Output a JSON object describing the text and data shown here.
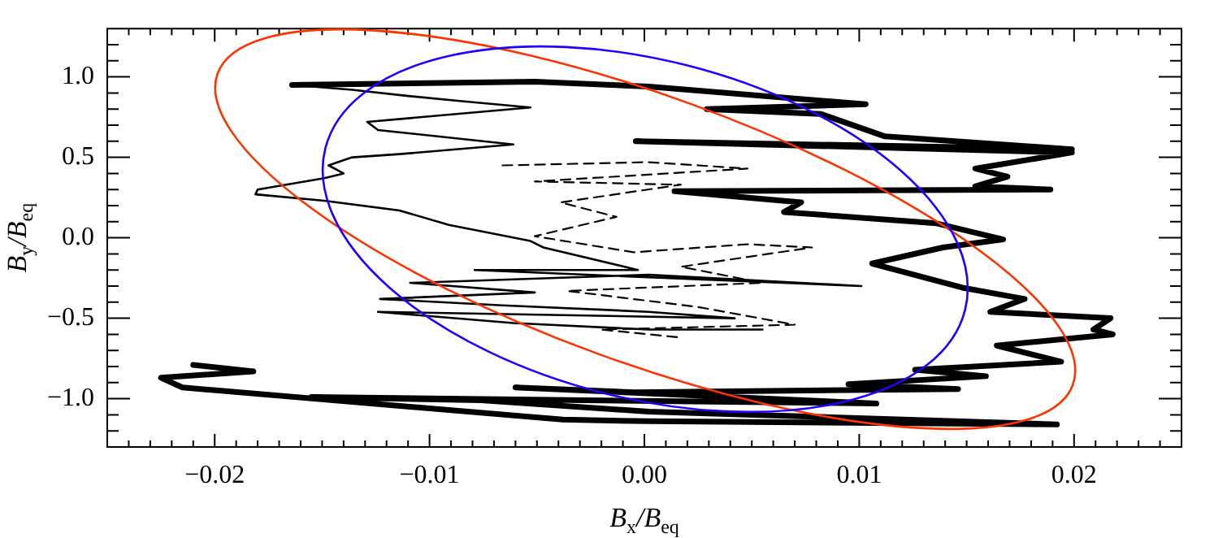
{
  "chart_data": {
    "type": "line",
    "xlabel": "B$_{x}$/B$_{eq}$",
    "ylabel": "B$_{y}$/B$_{eq}$",
    "marker": "none",
    "legend": false,
    "grid": false,
    "xlim": [
      -0.025,
      0.025
    ],
    "ylim": [
      -1.3,
      1.3
    ],
    "xticks": [
      {
        "value": -0.024,
        "label": null
      },
      {
        "value": -0.023,
        "label": null
      },
      {
        "value": -0.022,
        "label": null
      },
      {
        "value": -0.021,
        "label": null
      },
      {
        "value": -0.02,
        "label": "−0.02"
      },
      {
        "value": -0.019,
        "label": null
      },
      {
        "value": -0.018,
        "label": null
      },
      {
        "value": -0.017,
        "label": null
      },
      {
        "value": -0.016,
        "label": null
      },
      {
        "value": -0.015,
        "label": null
      },
      {
        "value": -0.014,
        "label": null
      },
      {
        "value": -0.013,
        "label": null
      },
      {
        "value": -0.012,
        "label": null
      },
      {
        "value": -0.011,
        "label": null
      },
      {
        "value": -0.01,
        "label": "−0.01"
      },
      {
        "value": -0.009,
        "label": null
      },
      {
        "value": -0.008,
        "label": null
      },
      {
        "value": -0.007,
        "label": null
      },
      {
        "value": -0.006,
        "label": null
      },
      {
        "value": -0.005,
        "label": null
      },
      {
        "value": -0.004,
        "label": null
      },
      {
        "value": -0.003,
        "label": null
      },
      {
        "value": -0.002,
        "label": null
      },
      {
        "value": -0.001,
        "label": null
      },
      {
        "value": 0,
        "label": "0.00"
      },
      {
        "value": 0.001,
        "label": null
      },
      {
        "value": 0.002,
        "label": null
      },
      {
        "value": 0.003,
        "label": null
      },
      {
        "value": 0.004,
        "label": null
      },
      {
        "value": 0.005,
        "label": null
      },
      {
        "value": 0.006,
        "label": null
      },
      {
        "value": 0.007,
        "label": null
      },
      {
        "value": 0.008,
        "label": null
      },
      {
        "value": 0.009,
        "label": null
      },
      {
        "value": 0.01,
        "label": "0.01"
      },
      {
        "value": 0.011,
        "label": null
      },
      {
        "value": 0.012,
        "label": null
      },
      {
        "value": 0.013,
        "label": null
      },
      {
        "value": 0.014,
        "label": null
      },
      {
        "value": 0.015,
        "label": null
      },
      {
        "value": 0.016,
        "label": null
      },
      {
        "value": 0.017,
        "label": null
      },
      {
        "value": 0.018,
        "label": null
      },
      {
        "value": 0.019,
        "label": null
      },
      {
        "value": 0.02,
        "label": "0.02"
      },
      {
        "value": 0.021,
        "label": null
      },
      {
        "value": 0.022,
        "label": null
      },
      {
        "value": 0.023,
        "label": null
      },
      {
        "value": 0.024,
        "label": null
      }
    ],
    "yticks": [
      {
        "value": -1.2,
        "label": null
      },
      {
        "value": -1.1,
        "label": null
      },
      {
        "value": -1.0,
        "label": "−1.0"
      },
      {
        "value": -0.9,
        "label": null
      },
      {
        "value": -0.8,
        "label": null
      },
      {
        "value": -0.7,
        "label": null
      },
      {
        "value": -0.6,
        "label": null
      },
      {
        "value": -0.5,
        "label": "−0.5"
      },
      {
        "value": -0.4,
        "label": null
      },
      {
        "value": -0.3,
        "label": null
      },
      {
        "value": -0.2,
        "label": null
      },
      {
        "value": -0.1,
        "label": null
      },
      {
        "value": 0,
        "label": "0.0"
      },
      {
        "value": 0.1,
        "label": null
      },
      {
        "value": 0.2,
        "label": null
      },
      {
        "value": 0.3,
        "label": null
      },
      {
        "value": 0.4,
        "label": null
      },
      {
        "value": 0.5,
        "label": "0.5"
      },
      {
        "value": 0.6,
        "label": null
      },
      {
        "value": 0.7,
        "label": null
      },
      {
        "value": 0.8,
        "label": null
      },
      {
        "value": 0.9,
        "label": null
      },
      {
        "value": 1.0,
        "label": "1.0"
      },
      {
        "value": 1.1,
        "label": null
      },
      {
        "value": 1.2,
        "label": null
      }
    ],
    "series": [
      {
        "color": "#000000",
        "line_style": "solid",
        "x": [
          -0.0164,
          -0.0051,
          0.0002,
          0.0103,
          0.0029,
          0.0082,
          0.0112,
          0.0199,
          -0.0004,
          0.0199,
          0.0154,
          0.0169,
          0.0154,
          0.0189,
          0.0014,
          0.0073,
          0.0065,
          0.0136,
          0.0167,
          0.0139,
          0.0106,
          0.0148,
          0.0177,
          0.0161,
          0.0217,
          0.0209,
          0.0218,
          0.0164,
          0.0194,
          0.0126,
          0.0159,
          0.0095,
          0.0146,
          -0.0005,
          -0.006,
          0.0108,
          -0.0155,
          -0.0076,
          0.0002,
          0.0192,
          0.0002,
          -0.0038,
          -0.0215,
          -0.0225,
          -0.0182,
          -0.021
        ],
        "values": [
          0.95,
          0.97,
          0.94,
          0.83,
          0.8,
          0.77,
          0.63,
          0.55,
          0.6,
          0.53,
          0.43,
          0.38,
          0.32,
          0.3,
          0.29,
          0.22,
          0.16,
          0.09,
          -0.01,
          -0.06,
          -0.16,
          -0.31,
          -0.38,
          -0.46,
          -0.5,
          -0.57,
          -0.6,
          -0.67,
          -0.77,
          -0.82,
          -0.86,
          -0.91,
          -0.94,
          -0.96,
          -0.93,
          -1.03,
          -0.99,
          -1.01,
          -1.08,
          -1.16,
          -1.14,
          -1.13,
          -0.93,
          -0.87,
          -0.83,
          -0.79
        ]
      },
      {
        "color": "#000000",
        "line_style": "solid",
        "x": [
          -0.0164,
          -0.0136,
          -0.0109,
          -0.0086,
          -0.0053,
          -0.0129,
          -0.0124,
          -0.0061,
          -0.0114,
          -0.0136,
          -0.0147,
          -0.014,
          -0.0149,
          -0.018,
          -0.0181,
          -0.0149,
          -0.0114,
          -0.0091,
          -0.0053,
          -0.0047,
          -0.0003,
          -0.0079,
          0.0101,
          0.0002,
          -0.0109,
          -0.0051,
          -0.0123,
          -0.0066,
          0.0002,
          0.0042,
          -0.0124,
          -0.0061,
          0.0002,
          0.0055
        ],
        "values": [
          0.95,
          0.92,
          0.88,
          0.85,
          0.81,
          0.72,
          0.67,
          0.58,
          0.52,
          0.5,
          0.45,
          0.4,
          0.37,
          0.3,
          0.27,
          0.23,
          0.17,
          0.08,
          -0.02,
          -0.06,
          -0.2,
          -0.2,
          -0.3,
          -0.23,
          -0.28,
          -0.34,
          -0.38,
          -0.42,
          -0.46,
          -0.5,
          -0.46,
          -0.53,
          -0.57,
          -0.57
        ]
      },
      {
        "color": "#000000",
        "line_style": "dashed",
        "x": [
          -0.0066,
          0.0002,
          0.0048,
          -0.0051,
          0.0017,
          -0.0039,
          -0.0013,
          -0.0051,
          -0.0005,
          0.0048,
          0.0078,
          0.0017,
          0.0055,
          -0.0036,
          0.0025,
          0.007,
          -0.002,
          0.0017
        ],
        "values": [
          0.45,
          0.47,
          0.43,
          0.35,
          0.33,
          0.22,
          0.13,
          0.01,
          -0.09,
          -0.04,
          -0.06,
          -0.18,
          -0.28,
          -0.33,
          -0.43,
          -0.54,
          -0.57,
          -0.62
        ]
      }
    ]
  }
}
